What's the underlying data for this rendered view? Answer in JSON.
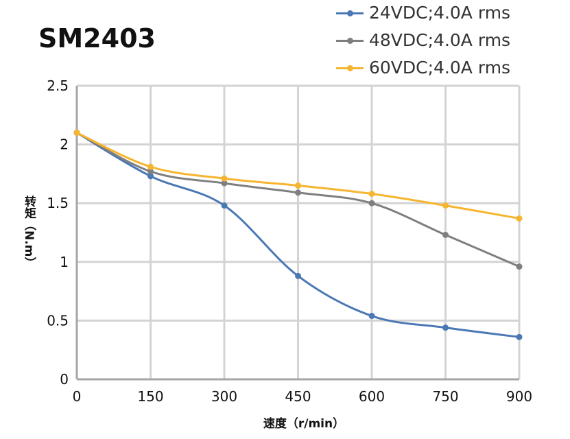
{
  "chart_data": {
    "type": "line",
    "title": "SM2403",
    "xlabel": "速度（r/min）",
    "ylabel": "转矩（N.m）",
    "x": [
      0,
      150,
      300,
      450,
      600,
      750,
      900
    ],
    "xlim": [
      0,
      900
    ],
    "ylim": [
      0,
      2.5
    ],
    "xticks": [
      "0",
      "150",
      "300",
      "450",
      "600",
      "750",
      "900"
    ],
    "yticks": [
      "0",
      "0.5",
      "1",
      "1.5",
      "2",
      "2.5"
    ],
    "grid": true,
    "legend_position": "top-right",
    "series": [
      {
        "name": "24VDC;4.0A rms",
        "color": "#4a78b5",
        "values": [
          2.1,
          1.73,
          1.48,
          0.88,
          0.54,
          0.44,
          0.36
        ]
      },
      {
        "name": "48VDC;4.0A rms",
        "color": "#7f7f7f",
        "values": [
          2.1,
          1.77,
          1.67,
          1.59,
          1.5,
          1.23,
          0.96
        ]
      },
      {
        "name": "60VDC;4.0A rms",
        "color": "#f5b530",
        "values": [
          2.1,
          1.81,
          1.71,
          1.65,
          1.58,
          1.48,
          1.37
        ]
      }
    ]
  }
}
